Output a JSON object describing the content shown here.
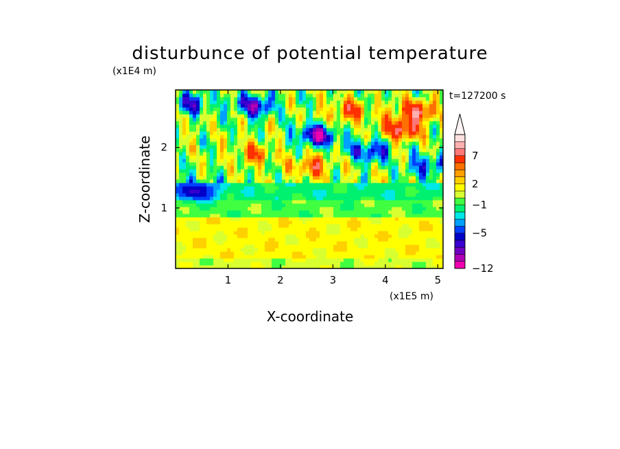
{
  "chart_data": {
    "type": "heatmap",
    "title": "disturbunce of potential temperature",
    "time_label": "t=127200 s",
    "xlabel": "X-coordinate",
    "ylabel": "Z-coordinate",
    "x_unit_label": "(x1E5 m)",
    "y_unit_label": "(x1E4 m)",
    "xlim": [
      0,
      5.1
    ],
    "ylim": [
      0,
      2.95
    ],
    "x_ticks": [
      1,
      2,
      3,
      4,
      5
    ],
    "y_ticks": [
      1,
      2
    ],
    "x_tick_labels": [
      "1",
      "2",
      "3",
      "4",
      "5"
    ],
    "y_tick_labels": [
      "1",
      "2"
    ],
    "colorbar": {
      "extend": "max",
      "tick_labels": [
        "7",
        "2",
        "−1",
        "−5",
        "−12"
      ],
      "tick_values": [
        7,
        2,
        -1,
        -5,
        -12
      ],
      "levels_low_to_high": [
        -12,
        -10,
        -8,
        -7,
        -6,
        -5,
        -4,
        -3,
        -2,
        -1,
        0,
        1,
        2,
        3,
        4,
        5,
        7,
        9,
        11
      ],
      "colors_low_to_high": [
        "#f000b0",
        "#b000b4",
        "#7000c0",
        "#3a00d0",
        "#0000c8",
        "#0040ff",
        "#00a0ff",
        "#00e8e8",
        "#00f070",
        "#40ff40",
        "#d8ff30",
        "#ffff00",
        "#ffd000",
        "#ffa000",
        "#ff7000",
        "#ff3000",
        "#ff7878",
        "#ffb0b0",
        "#ffe0e0"
      ]
    },
    "bands": [
      {
        "z_range": [
          0.0,
          0.15
        ],
        "dominant_value": 0.5,
        "description_values": [
          0,
          1
        ]
      },
      {
        "z_range": [
          0.15,
          0.85
        ],
        "dominant_value": 1.5,
        "description_values": [
          1,
          2
        ]
      },
      {
        "z_range": [
          0.85,
          1.15
        ],
        "dominant_value": -0.5,
        "description_values": [
          -1,
          0
        ]
      },
      {
        "z_range": [
          1.15,
          1.4
        ],
        "dominant_value": -1.5,
        "description_values": [
          -2,
          -1
        ]
      },
      {
        "z_range": [
          1.4,
          2.95
        ],
        "dominant_value": 0,
        "description_values": [
          -8,
          5
        ]
      }
    ],
    "features": [
      {
        "kind": "min",
        "x": 1.5,
        "z": 2.7,
        "value": -7
      },
      {
        "kind": "min",
        "x": 0.3,
        "z": 2.75,
        "value": -5
      },
      {
        "kind": "min",
        "x": 2.7,
        "z": 2.2,
        "value": -8
      },
      {
        "kind": "min",
        "x": 3.7,
        "z": 1.95,
        "value": -6
      },
      {
        "kind": "min",
        "x": 4.8,
        "z": 1.7,
        "value": -5
      },
      {
        "kind": "min",
        "x": 0.4,
        "z": 1.3,
        "value": -5
      },
      {
        "kind": "max",
        "x": 4.3,
        "z": 2.3,
        "value": 7
      },
      {
        "kind": "max",
        "x": 2.6,
        "z": 1.7,
        "value": 5
      },
      {
        "kind": "max",
        "x": 3.3,
        "z": 2.6,
        "value": 5
      },
      {
        "kind": "max",
        "x": 1.5,
        "z": 1.9,
        "value": 4
      },
      {
        "kind": "max",
        "x": 4.6,
        "z": 2.6,
        "value": 7
      }
    ]
  }
}
